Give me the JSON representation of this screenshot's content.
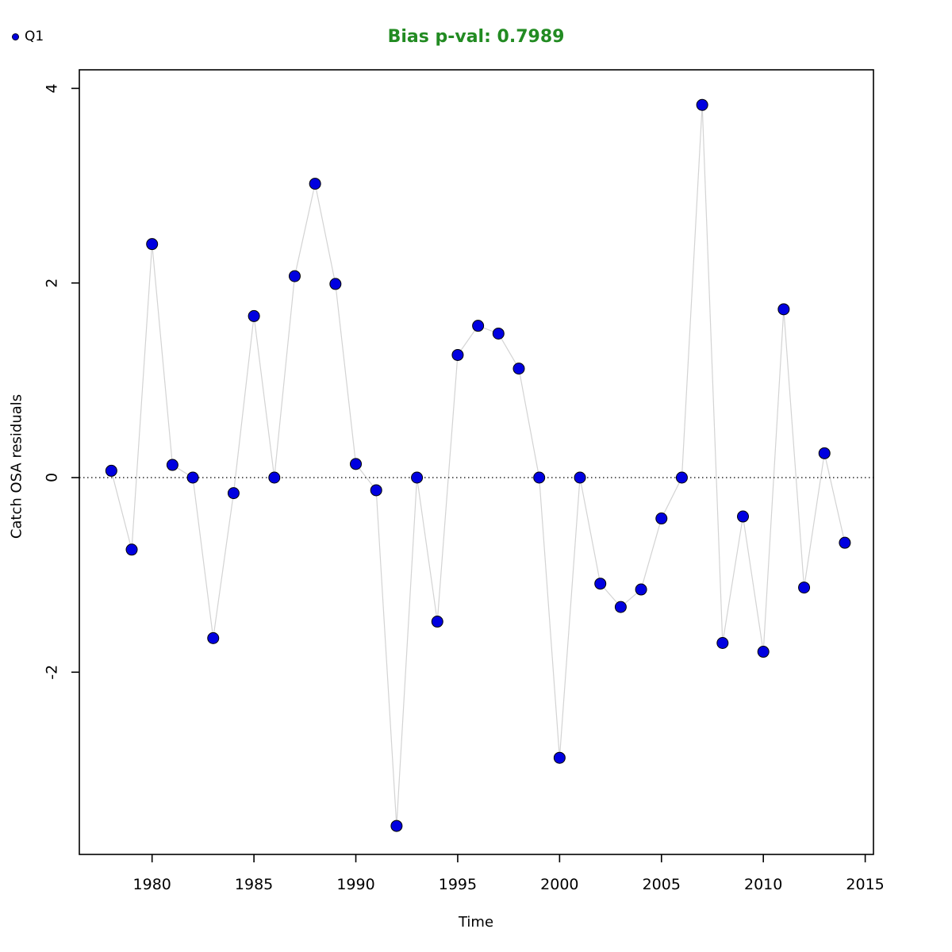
{
  "chart_data": {
    "type": "scatter",
    "title": "Bias p-val: 0.7989",
    "title_color": "#228B22",
    "xlabel": "Time",
    "ylabel": "Catch OSA residuals",
    "legend_position": "top-left-outside",
    "grid": false,
    "zero_line": true,
    "point_color": "#0000e0",
    "point_edge_color": "#000000",
    "line_color": "#d3d3d3",
    "axis_color": "#000000",
    "x_ticks": [
      1980,
      1985,
      1990,
      1995,
      2000,
      2005,
      2010,
      2015
    ],
    "y_ticks": [
      -2,
      0,
      2,
      4
    ],
    "xlim": [
      1976.5,
      2015.5
    ],
    "ylim": [
      -3.88,
      4.13
    ],
    "series": [
      {
        "name": "Q1",
        "x": [
          1978,
          1979,
          1980,
          1981,
          1982,
          1983,
          1984,
          1985,
          1986,
          1987,
          1988,
          1989,
          1990,
          1991,
          1992,
          1993,
          1994,
          1995,
          1996,
          1997,
          1998,
          1999,
          2000,
          2001,
          2002,
          2003,
          2004,
          2005,
          2006,
          2007,
          2008,
          2009,
          2010,
          2011,
          2012,
          2013,
          2014
        ],
        "y": [
          0.07,
          -0.74,
          2.4,
          0.13,
          0.0,
          -1.65,
          -0.16,
          1.66,
          0.0,
          2.07,
          3.02,
          1.99,
          0.14,
          -0.13,
          -3.58,
          0.0,
          -1.48,
          1.26,
          1.56,
          1.48,
          1.12,
          0.0,
          -2.88,
          0.0,
          -1.09,
          -1.33,
          -1.15,
          -0.42,
          0.0,
          3.83,
          -1.7,
          -0.4,
          -1.79,
          1.73,
          -1.13,
          0.25,
          -0.67
        ]
      }
    ]
  }
}
